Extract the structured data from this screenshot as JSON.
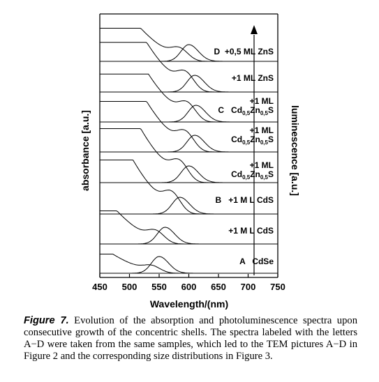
{
  "chart_data": {
    "type": "line",
    "title": "",
    "xlabel": "Wavelength/(nm)",
    "ylabel_left": "absorbance [a.u.]",
    "ylabel_right": "luminescence [a.u.]",
    "xlim": [
      450,
      750
    ],
    "xticks": [
      450,
      500,
      550,
      600,
      650,
      700,
      750
    ],
    "grid": false,
    "legend": "none",
    "arrow": "up",
    "traces": [
      {
        "id": "t1",
        "label_lines": [
          [
            {
              "t": "A"
            },
            {
              "t": "   CdSe"
            }
          ]
        ],
        "lum_peak_nm": 550,
        "abs_peak_nm": 538
      },
      {
        "id": "t2",
        "label_lines": [
          [
            {
              "t": "+1 M L CdS"
            }
          ]
        ],
        "lum_peak_nm": 560,
        "abs_peak_nm": 545
      },
      {
        "id": "t3",
        "label_lines": [
          [
            {
              "t": "B   +1 M L CdS"
            }
          ]
        ],
        "lum_peak_nm": 585,
        "abs_peak_nm": 572
      },
      {
        "id": "t4",
        "label_lines": [
          [
            {
              "t": "+1 ML"
            }
          ],
          [
            {
              "t": "Cd"
            },
            {
              "t": "0,5",
              "sub": true
            },
            {
              "t": "Zn"
            },
            {
              "t": "0,5",
              "sub": true
            },
            {
              "t": "S"
            }
          ]
        ],
        "lum_peak_nm": 600,
        "abs_peak_nm": 585
      },
      {
        "id": "t5",
        "label_lines": [
          [
            {
              "t": "+1 ML"
            }
          ],
          [
            {
              "t": "Cd"
            },
            {
              "t": "0,5",
              "sub": true
            },
            {
              "t": "Zn"
            },
            {
              "t": "0,5",
              "sub": true
            },
            {
              "t": "S"
            }
          ]
        ],
        "lum_peak_nm": 610,
        "abs_peak_nm": 595
      },
      {
        "id": "t6",
        "label_lines": [
          [
            {
              "t": "+1 ML"
            }
          ],
          [
            {
              "t": "C   Cd"
            },
            {
              "t": "0,5",
              "sub": true
            },
            {
              "t": "Zn"
            },
            {
              "t": "0,5",
              "sub": true
            },
            {
              "t": "S"
            }
          ]
        ],
        "lum_peak_nm": 612,
        "abs_peak_nm": 598
      },
      {
        "id": "t7",
        "label_lines": [
          [
            {
              "t": "+1 ML ZnS"
            }
          ]
        ],
        "lum_peak_nm": 610,
        "abs_peak_nm": 595
      },
      {
        "id": "t8",
        "label_lines": [
          [
            {
              "t": "D  +0,5 ML ZnS"
            }
          ]
        ],
        "lum_peak_nm": 600,
        "abs_peak_nm": 585
      }
    ]
  },
  "caption": {
    "figure_label": "Figure 7.",
    "text": "Evolution of the absorption and photoluminescence spectra upon consecutive growth of the concentric shells. The spectra labeled with the letters A−D were taken from the same samples, which led to the TEM pictures A−D in Figure 2 and the corresponding size distributions in Figure 3."
  }
}
